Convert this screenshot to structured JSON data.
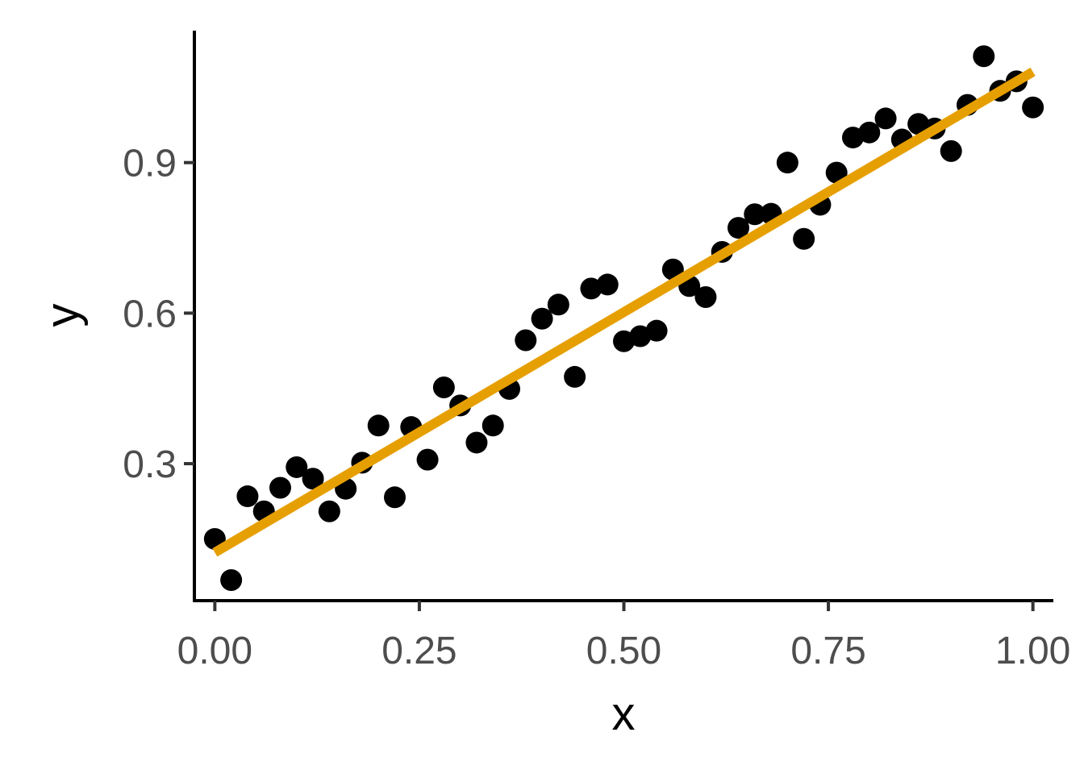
{
  "chart_data": {
    "type": "scatter",
    "title": "",
    "xlabel": "x",
    "ylabel": "y",
    "xlim": [
      -0.025,
      1.025
    ],
    "ylim": [
      0.027,
      1.163
    ],
    "x_ticks": [
      0.0,
      0.25,
      0.5,
      0.75,
      1.0
    ],
    "x_tick_labels": [
      "0.00",
      "0.25",
      "0.50",
      "0.75",
      "1.00"
    ],
    "y_ticks": [
      0.3,
      0.6,
      0.9
    ],
    "y_tick_labels": [
      "0.3",
      "0.6",
      "0.9"
    ],
    "grid": false,
    "legend": "none",
    "point_color": "#000000",
    "line_color": "#E69F00",
    "series": [
      {
        "kind": "points",
        "x": [
          0.0,
          0.02,
          0.04,
          0.06,
          0.08,
          0.1,
          0.12,
          0.14,
          0.16,
          0.18,
          0.2,
          0.22,
          0.24,
          0.26,
          0.28,
          0.3,
          0.32,
          0.34,
          0.36,
          0.38,
          0.4,
          0.42,
          0.44,
          0.46,
          0.48,
          0.5,
          0.52,
          0.54,
          0.56,
          0.58,
          0.6,
          0.62,
          0.64,
          0.66,
          0.68,
          0.7,
          0.72,
          0.74,
          0.76,
          0.78,
          0.8,
          0.82,
          0.84,
          0.86,
          0.88,
          0.9,
          0.92,
          0.94,
          0.96,
          0.98,
          1.0
        ],
        "y": [
          0.15,
          0.068,
          0.235,
          0.205,
          0.252,
          0.293,
          0.27,
          0.205,
          0.25,
          0.302,
          0.376,
          0.233,
          0.373,
          0.308,
          0.452,
          0.416,
          0.342,
          0.376,
          0.449,
          0.546,
          0.589,
          0.617,
          0.473,
          0.649,
          0.657,
          0.544,
          0.554,
          0.565,
          0.687,
          0.654,
          0.632,
          0.722,
          0.77,
          0.797,
          0.798,
          0.9,
          0.748,
          0.816,
          0.88,
          0.95,
          0.96,
          0.988,
          0.946,
          0.977,
          0.968,
          0.923,
          1.015,
          1.112,
          1.043,
          1.062,
          1.01
        ]
      },
      {
        "kind": "fit-line",
        "x": [
          0.0,
          1.0
        ],
        "y": [
          0.123,
          1.081
        ]
      }
    ]
  }
}
